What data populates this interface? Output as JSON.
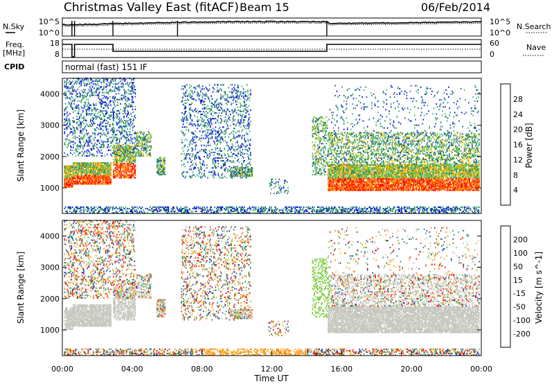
{
  "header": {
    "title": "Christmas Valley East (fitACF)",
    "beam": "Beam 15",
    "date": "06/Feb/2014"
  },
  "strips": {
    "nsky_label": "N.Sky",
    "nsearch_label": "N.Search",
    "noise_ticks_left": [
      "10^5",
      "10^0"
    ],
    "noise_ticks_right": [
      "10^5",
      "10^0"
    ],
    "freq_label_1": "Freq.",
    "freq_label_2": "[MHz]",
    "freq_ticks": [
      "18",
      "8"
    ],
    "nave_label": "Nave",
    "nave_ticks": [
      "60",
      "0"
    ],
    "cpid_label": "CPID",
    "cpid_value": "normal (fast) 151 IF"
  },
  "chart_data": [
    {
      "type": "heatmap",
      "name": "power-panel",
      "ylabel": "Slant Range [km]",
      "ylim": [
        180,
        4500
      ],
      "yticks": [
        "1000",
        "2000",
        "3000",
        "4000"
      ],
      "colorbar_label": "Power [dB]",
      "colorbar_ticks": [
        "4",
        "8",
        "12",
        "16",
        "20",
        "24",
        "28"
      ],
      "colors": [
        "#0000ff",
        "#1f4fa0",
        "#2e8b57",
        "#3cb371",
        "#7fcc3f",
        "#f0c000",
        "#ff9900",
        "#ff5000",
        "#ff0000"
      ]
    },
    {
      "type": "heatmap",
      "name": "velocity-panel",
      "ylabel": "Slant Range [km]",
      "ylim": [
        180,
        4500
      ],
      "yticks": [
        "1000",
        "2000",
        "3000",
        "4000"
      ],
      "colorbar_label": "Velocity [m s^-1]",
      "colorbar_ticks": [
        "200",
        "100",
        "50",
        "15",
        "-15",
        "-50",
        "-100",
        "-200"
      ],
      "colors": [
        "#1a3fb0",
        "#2e6f9e",
        "#2e8b57",
        "#7ccc3f",
        "#c8c8c0",
        "#f0b030",
        "#ff8800",
        "#ff4000",
        "#ff0000"
      ],
      "xlabel": "Time UT",
      "xticks": [
        "00:00",
        "04:00",
        "08:00",
        "12:00",
        "16:00",
        "20:00",
        "00:00"
      ]
    }
  ]
}
